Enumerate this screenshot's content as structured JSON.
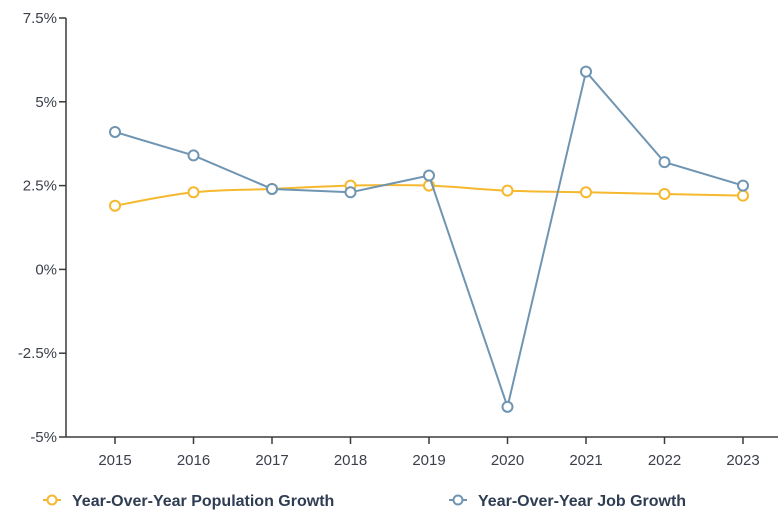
{
  "chart_data": {
    "type": "line",
    "title": "",
    "xlabel": "",
    "ylabel": "",
    "categories": [
      "2015",
      "2016",
      "2017",
      "2018",
      "2019",
      "2020",
      "2021",
      "2022",
      "2023"
    ],
    "y_ticks": [
      "7.5%",
      "5%",
      "2.5%",
      "0%",
      "-2.5%",
      "-5%"
    ],
    "y_tick_values": [
      7.5,
      5,
      2.5,
      0,
      -2.5,
      -5
    ],
    "ylim": [
      -5,
      7.5
    ],
    "grid": false,
    "legend_position": "bottom",
    "series": [
      {
        "name": "Year-Over-Year Population Growth",
        "color": "#f5b82e",
        "values": [
          1.9,
          2.3,
          2.4,
          2.5,
          2.5,
          2.35,
          2.3,
          2.25,
          2.2
        ]
      },
      {
        "name": "Year-Over-Year Job Growth",
        "color": "#6f95b2",
        "values": [
          4.1,
          3.4,
          2.4,
          2.3,
          2.8,
          -4.1,
          5.9,
          3.2,
          2.5
        ]
      }
    ]
  }
}
